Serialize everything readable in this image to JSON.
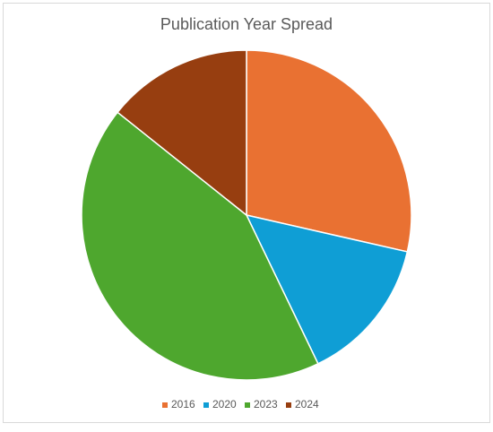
{
  "chart_data": {
    "type": "pie",
    "title": "Publication Year Spread",
    "categories": [
      "2016",
      "2020",
      "2023",
      "2024"
    ],
    "values": [
      2,
      1,
      3,
      1
    ],
    "colors": [
      "#e97132",
      "#0f9ed5",
      "#4ea72e",
      "#973e10"
    ],
    "legend": "bottom"
  }
}
